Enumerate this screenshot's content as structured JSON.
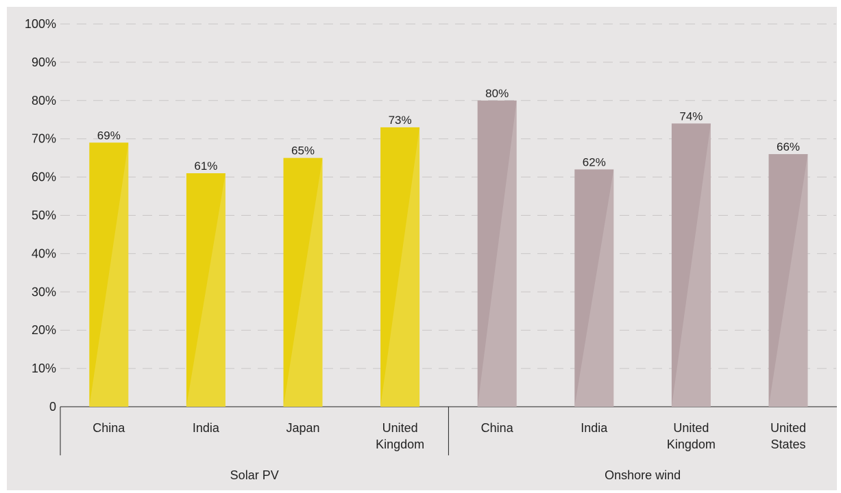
{
  "chart_data": {
    "type": "bar",
    "ylim": [
      0,
      100
    ],
    "y_ticks": [
      "0",
      "10%",
      "20%",
      "30%",
      "40%",
      "50%",
      "60%",
      "70%",
      "80%",
      "90%",
      "100%"
    ],
    "grid": "horizontal dashed",
    "groups": [
      {
        "name": "Solar PV",
        "color": "#e8d010",
        "categories": [
          [
            "China"
          ],
          [
            "India"
          ],
          [
            "Japan"
          ],
          [
            "United",
            "Kingdom"
          ]
        ],
        "values": [
          69,
          61,
          65,
          73
        ],
        "value_labels": [
          "69%",
          "61%",
          "65%",
          "73%"
        ]
      },
      {
        "name": "Onshore wind",
        "color": "#b5a1a4",
        "categories": [
          [
            "China"
          ],
          [
            "India"
          ],
          [
            "United",
            "Kingdom"
          ],
          [
            "United",
            "States"
          ]
        ],
        "values": [
          80,
          62,
          74,
          66
        ],
        "value_labels": [
          "80%",
          "62%",
          "74%",
          "66%"
        ]
      }
    ]
  }
}
